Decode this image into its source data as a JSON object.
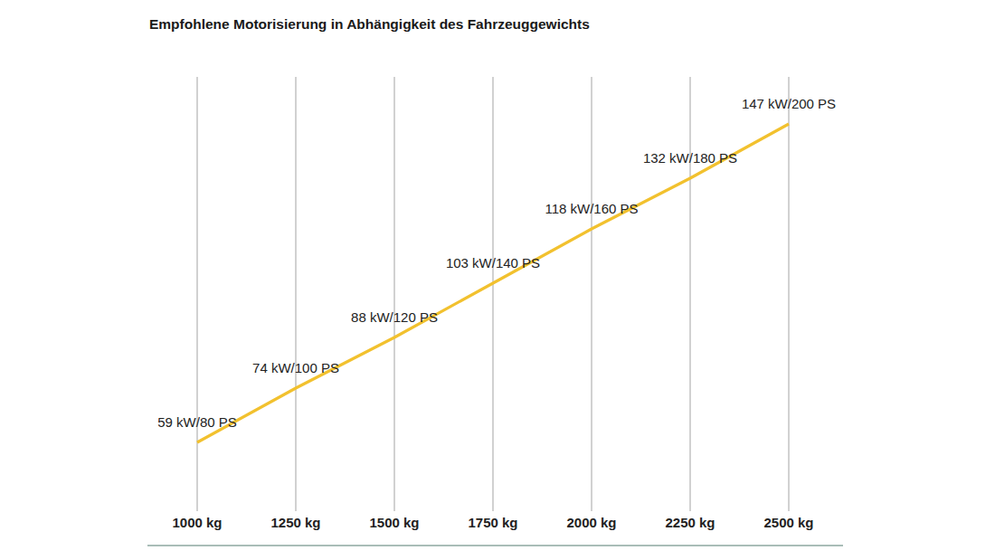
{
  "chart_data": {
    "type": "line",
    "title": "Empfohlene Motorisierung in Abhängigkeit des Fahrzeuggewichts",
    "x": [
      1000,
      1250,
      1500,
      1750,
      2000,
      2250,
      2500
    ],
    "values": [
      59,
      74,
      88,
      103,
      118,
      132,
      147
    ],
    "value_labels": [
      "59 kW/80 PS",
      "74 kW/100 PS",
      "88 kW/120 PS",
      "103 kW/140 PS",
      "118 kW/160 PS",
      "132 kW/180 PS",
      "147 kW/200 PS"
    ],
    "data_labels": true,
    "color": "#f2c12e",
    "xlim": [
      1000,
      2500
    ],
    "xticks": [
      {
        "value": 1000,
        "label": "1000 kg"
      },
      {
        "value": 1250,
        "label": "1250 kg"
      },
      {
        "value": 1500,
        "label": "1500 kg"
      },
      {
        "value": 1750,
        "label": "1750 kg"
      },
      {
        "value": 2000,
        "label": "2000 kg"
      },
      {
        "value": 2250,
        "label": "2250 kg"
      },
      {
        "value": 2500,
        "label": "2500 kg"
      }
    ],
    "ylim": [
      40,
      160
    ],
    "grid": true,
    "tick_labels": "x"
  }
}
